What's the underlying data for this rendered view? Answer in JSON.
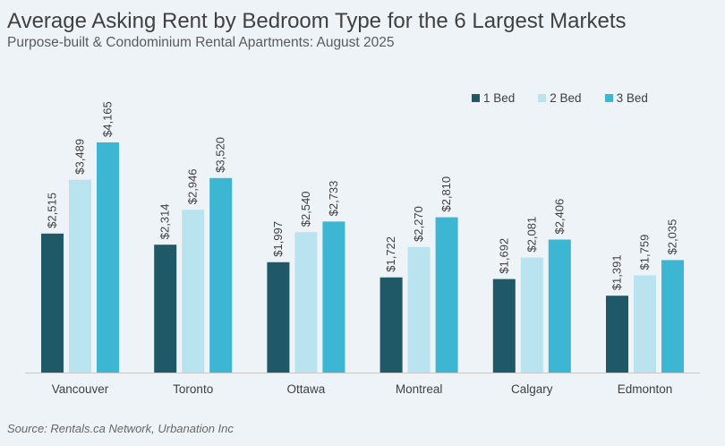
{
  "title": "Average Asking Rent by Bedroom Type for the 6 Largest Markets",
  "subtitle": "Purpose-built & Condominium Rental Apartments: August 2025",
  "source": "Source: Rentals.ca Network, Urbanation Inc",
  "chart_data": {
    "type": "bar",
    "categories": [
      "Vancouver",
      "Toronto",
      "Ottawa",
      "Montreal",
      "Calgary",
      "Edmonton"
    ],
    "series": [
      {
        "name": "1 Bed",
        "color": "#1f5866",
        "values": [
          2515,
          2314,
          1997,
          1722,
          1692,
          1391
        ],
        "labels": [
          "$2,515",
          "$2,314",
          "$1,997",
          "$1,722",
          "$1,692",
          "$1,391"
        ]
      },
      {
        "name": "2 Bed",
        "color": "#b8e3ef",
        "values": [
          3489,
          2946,
          2540,
          2270,
          2081,
          1759
        ],
        "labels": [
          "$3,489",
          "$2,946",
          "$2,540",
          "$2,270",
          "$2,081",
          "$1,759"
        ]
      },
      {
        "name": "3 Bed",
        "color": "#3cb6d2",
        "values": [
          4165,
          3520,
          2733,
          2810,
          2406,
          2035
        ],
        "labels": [
          "$4,165",
          "$3,520",
          "$2,733",
          "$2,810",
          "$2,406",
          "$2,035"
        ]
      }
    ],
    "ylim": [
      0,
      4165
    ],
    "legend_position": "top-right",
    "grid": false
  }
}
